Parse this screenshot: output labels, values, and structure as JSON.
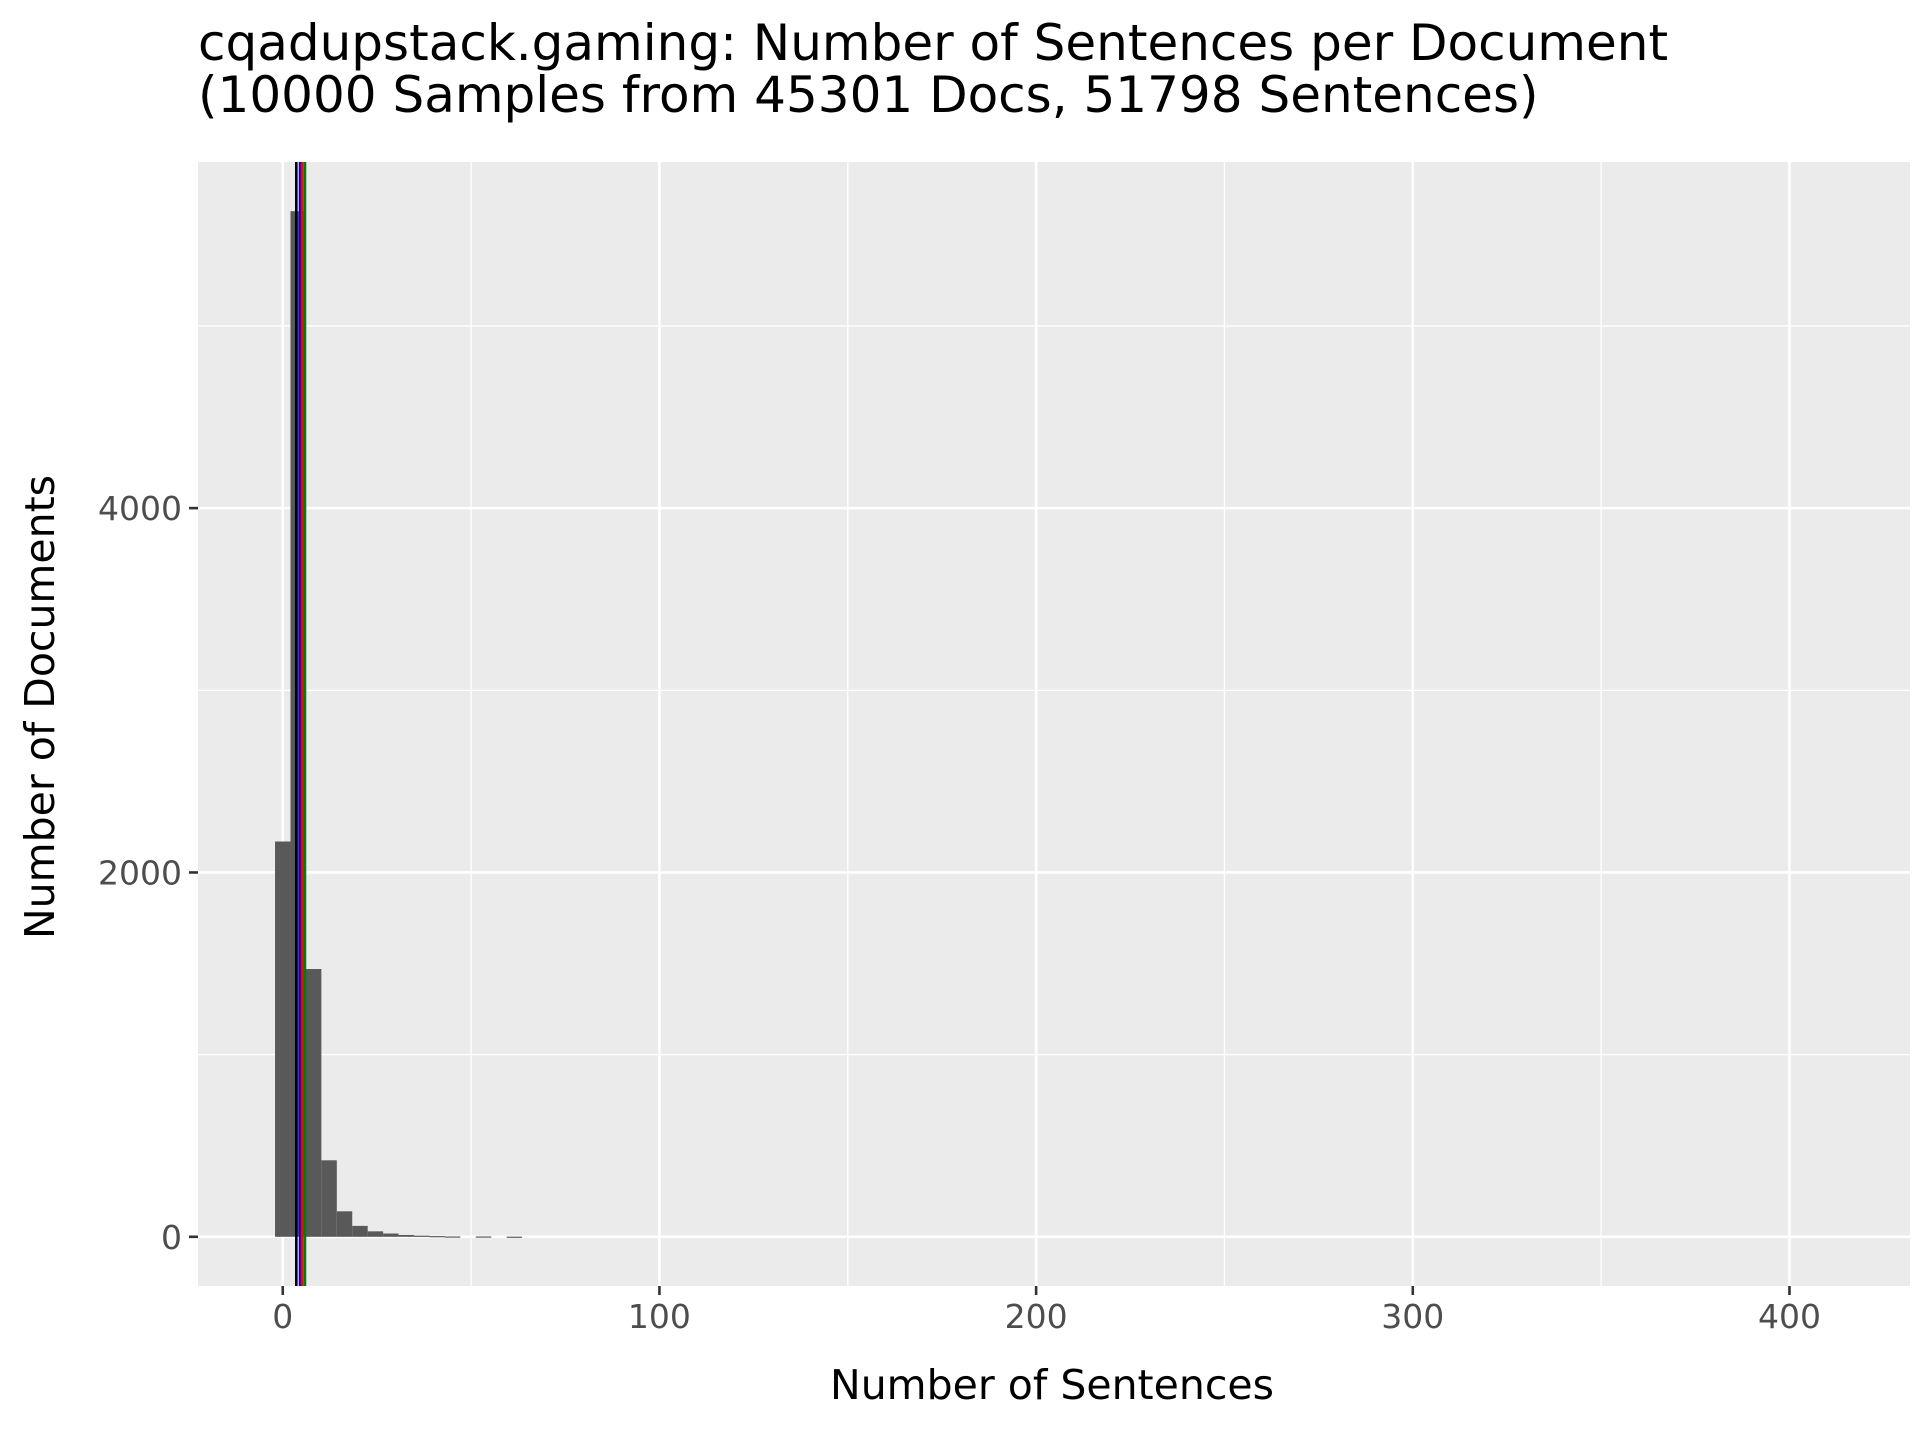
{
  "chart_data": {
    "type": "bar",
    "title": "cqadupstack.gaming: Number of Sentences per Document",
    "subtitle": "(10000 Samples from 45301 Docs, 51798 Sentences)",
    "xlabel": "Number of Sentences",
    "ylabel": "Number of Documents",
    "xlim": [
      -22.5,
      432
    ],
    "ylim": [
      -270,
      5900
    ],
    "x_ticks": [
      0,
      100,
      200,
      300,
      400
    ],
    "x_tick_labels": [
      "0",
      "100",
      "200",
      "300",
      "400"
    ],
    "x_minor_ticks": [
      50,
      150,
      250,
      350
    ],
    "y_ticks": [
      0,
      2000,
      4000
    ],
    "y_tick_labels": [
      "0",
      "2000",
      "4000"
    ],
    "y_minor_ticks": [
      1000,
      3000,
      5000
    ],
    "grid": true,
    "bin_width": 4.1,
    "bins": [
      {
        "x": 0,
        "count": 2170
      },
      {
        "x": 4.1,
        "count": 5630
      },
      {
        "x": 8.2,
        "count": 1470
      },
      {
        "x": 12.3,
        "count": 420
      },
      {
        "x": 16.4,
        "count": 140
      },
      {
        "x": 20.5,
        "count": 60
      },
      {
        "x": 24.6,
        "count": 30
      },
      {
        "x": 28.7,
        "count": 18
      },
      {
        "x": 32.8,
        "count": 10
      },
      {
        "x": 36.9,
        "count": 6
      },
      {
        "x": 41.0,
        "count": 4
      },
      {
        "x": 45.1,
        "count": 2
      },
      {
        "x": 53.3,
        "count": 2
      },
      {
        "x": 61.5,
        "count": 1
      }
    ],
    "vlines": [
      {
        "x": 3.6,
        "color": "#000000"
      },
      {
        "x": 4.6,
        "color": "#0000ff"
      },
      {
        "x": 5.2,
        "color": "#ff0000"
      },
      {
        "x": 5.9,
        "color": "#008000"
      }
    ],
    "colors": {
      "panel_background": "#ebebeb",
      "grid": "#ffffff",
      "bar_fill": "#595959"
    }
  }
}
